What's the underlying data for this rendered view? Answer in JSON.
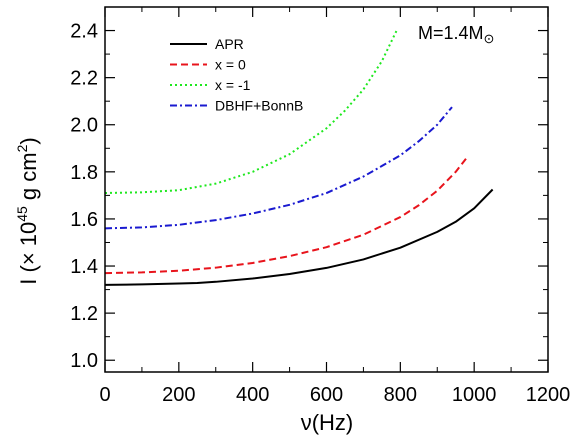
{
  "chart_data": {
    "type": "line",
    "xlabel": "ν(Hz)",
    "ylabel_prefix": "I (× 10",
    "ylabel_exp1": "45",
    "ylabel_mid": " g cm",
    "ylabel_exp2": "2",
    "ylabel_suffix": ")",
    "xlim": [
      0,
      1200
    ],
    "ylim": [
      0.95,
      2.5
    ],
    "xticks": [
      0,
      200,
      400,
      600,
      800,
      1000,
      1200
    ],
    "yticks": [
      1.0,
      1.2,
      1.4,
      1.6,
      1.8,
      2.0,
      2.2,
      2.4
    ],
    "xtick_labels": [
      "0",
      "200",
      "400",
      "600",
      "800",
      "1000",
      "1200"
    ],
    "ytick_labels": [
      "1.0",
      "1.2",
      "1.4",
      "1.6",
      "1.8",
      "2.0",
      "2.2",
      "2.4"
    ],
    "annotation": {
      "main": "M=1.4M",
      "symbol": "⊙"
    },
    "legend_position": "top-left",
    "series": [
      {
        "name": "APR",
        "color": "#000000",
        "dash": "solid",
        "x": [
          0,
          100,
          200,
          250,
          300,
          400,
          500,
          600,
          700,
          800,
          900,
          950,
          1000,
          1050
        ],
        "y": [
          1.32,
          1.322,
          1.326,
          1.328,
          1.333,
          1.347,
          1.366,
          1.392,
          1.428,
          1.478,
          1.545,
          1.588,
          1.645,
          1.725
        ]
      },
      {
        "name": "x = 0",
        "color": "#e8141c",
        "dash": "dash",
        "x": [
          0,
          100,
          200,
          300,
          400,
          500,
          600,
          700,
          800,
          850,
          900,
          950,
          980
        ],
        "y": [
          1.37,
          1.373,
          1.38,
          1.393,
          1.413,
          1.442,
          1.48,
          1.533,
          1.608,
          1.658,
          1.72,
          1.8,
          1.86
        ]
      },
      {
        "name": "x = -1",
        "color": "#1ee81e",
        "dash": "dot",
        "x": [
          0,
          100,
          200,
          300,
          400,
          500,
          600,
          650,
          700,
          750,
          790
        ],
        "y": [
          1.71,
          1.713,
          1.722,
          1.75,
          1.8,
          1.875,
          1.985,
          2.06,
          2.15,
          2.27,
          2.4
        ]
      },
      {
        "name": "DBHF+BonnB",
        "color": "#1a1ad0",
        "dash": "dashdot",
        "x": [
          0,
          100,
          200,
          300,
          400,
          500,
          600,
          700,
          800,
          850,
          900,
          940
        ],
        "y": [
          1.56,
          1.564,
          1.575,
          1.595,
          1.623,
          1.66,
          1.71,
          1.78,
          1.87,
          1.93,
          2.0,
          2.075
        ]
      }
    ]
  }
}
